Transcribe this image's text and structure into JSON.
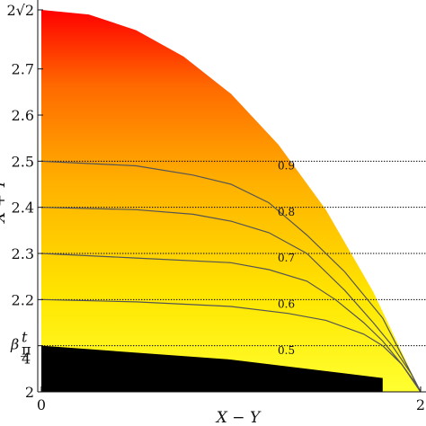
{
  "chart_data": {
    "type": "area",
    "xlabel": "X − Y",
    "ylabel": "X + Y",
    "xlim": [
      0,
      2
    ],
    "ylim": [
      2,
      2.828
    ],
    "x_ticks": [
      {
        "value": 0,
        "label": "0"
      },
      {
        "value": 2,
        "label": "2"
      }
    ],
    "y_ticks": [
      {
        "value": 2.0,
        "label": "2"
      },
      {
        "value": 2.1,
        "label": "β"
      },
      {
        "value": 2.2,
        "label": "2.2"
      },
      {
        "value": 2.3,
        "label": "2.3"
      },
      {
        "value": 2.4,
        "label": "2.4"
      },
      {
        "value": 2.5,
        "label": "2.5"
      },
      {
        "value": 2.6,
        "label": "2.6"
      },
      {
        "value": 2.7,
        "label": "2.7"
      },
      {
        "value": 2.828,
        "label": "2√2"
      }
    ],
    "beta_label": {
      "main": "β",
      "sup": "t",
      "sub_num": "π",
      "sub_den": "4"
    },
    "boundary": {
      "x": [
        0,
        0.25,
        0.5,
        0.75,
        1.0,
        1.25,
        1.5,
        1.75,
        2.0
      ],
      "y": [
        2.828,
        2.818,
        2.784,
        2.727,
        2.646,
        2.536,
        2.395,
        2.217,
        2.0
      ]
    },
    "black_region_top": {
      "x": [
        0,
        1.0,
        1.8
      ],
      "y": [
        2.1,
        2.07,
        2.03
      ]
    },
    "levels": [
      {
        "name": "0.5",
        "y_left": 2.1,
        "label_x": 1.0,
        "label_y": 2.09
      },
      {
        "name": "0.6",
        "y_left": 2.2,
        "label_x": 1.0,
        "label_y": 2.19
      },
      {
        "name": "0.7",
        "y_left": 2.3,
        "label_x": 1.0,
        "label_y": 2.29
      },
      {
        "name": "0.8",
        "y_left": 2.4,
        "label_x": 1.0,
        "label_y": 2.39
      },
      {
        "name": "0.9",
        "y_left": 2.5,
        "label_x": 1.0,
        "label_y": 2.49
      }
    ],
    "contour_lines": [
      {
        "name": "0.9",
        "x": [
          0,
          0.5,
          0.8,
          1.0,
          1.2,
          1.4,
          1.6,
          1.8,
          1.9,
          2.0
        ],
        "y": [
          2.5,
          2.49,
          2.47,
          2.45,
          2.41,
          2.34,
          2.26,
          2.16,
          2.08,
          2.0
        ]
      },
      {
        "name": "0.8",
        "x": [
          0,
          0.5,
          0.8,
          1.0,
          1.2,
          1.4,
          1.6,
          1.75,
          1.85,
          1.95,
          2.0
        ],
        "y": [
          2.4,
          2.395,
          2.385,
          2.37,
          2.345,
          2.3,
          2.22,
          2.15,
          2.1,
          2.04,
          2.0
        ]
      },
      {
        "name": "0.7",
        "x": [
          0,
          0.5,
          1.0,
          1.2,
          1.4,
          1.55,
          1.7,
          1.8,
          1.9,
          1.97,
          2.0
        ],
        "y": [
          2.3,
          2.29,
          2.28,
          2.265,
          2.24,
          2.2,
          2.15,
          2.11,
          2.06,
          2.02,
          2.0
        ]
      },
      {
        "name": "0.6",
        "x": [
          0,
          0.5,
          1.0,
          1.3,
          1.5,
          1.7,
          1.8,
          1.9,
          1.95,
          2.0
        ],
        "y": [
          2.2,
          2.195,
          2.185,
          2.17,
          2.155,
          2.125,
          2.1,
          2.06,
          2.03,
          2.0
        ]
      }
    ],
    "reference_lines_y": [
      2.1,
      2.2,
      2.3,
      2.4,
      2.5
    ],
    "colors": {
      "top": "#ff0000",
      "upper": "#ff6a00",
      "middle": "#ffb000",
      "lower": "#ffe600",
      "bottom": "#ffff30",
      "black_region": "#000000",
      "contour": "#555555",
      "reference": "#000000"
    },
    "grid": false,
    "legend": "none"
  }
}
